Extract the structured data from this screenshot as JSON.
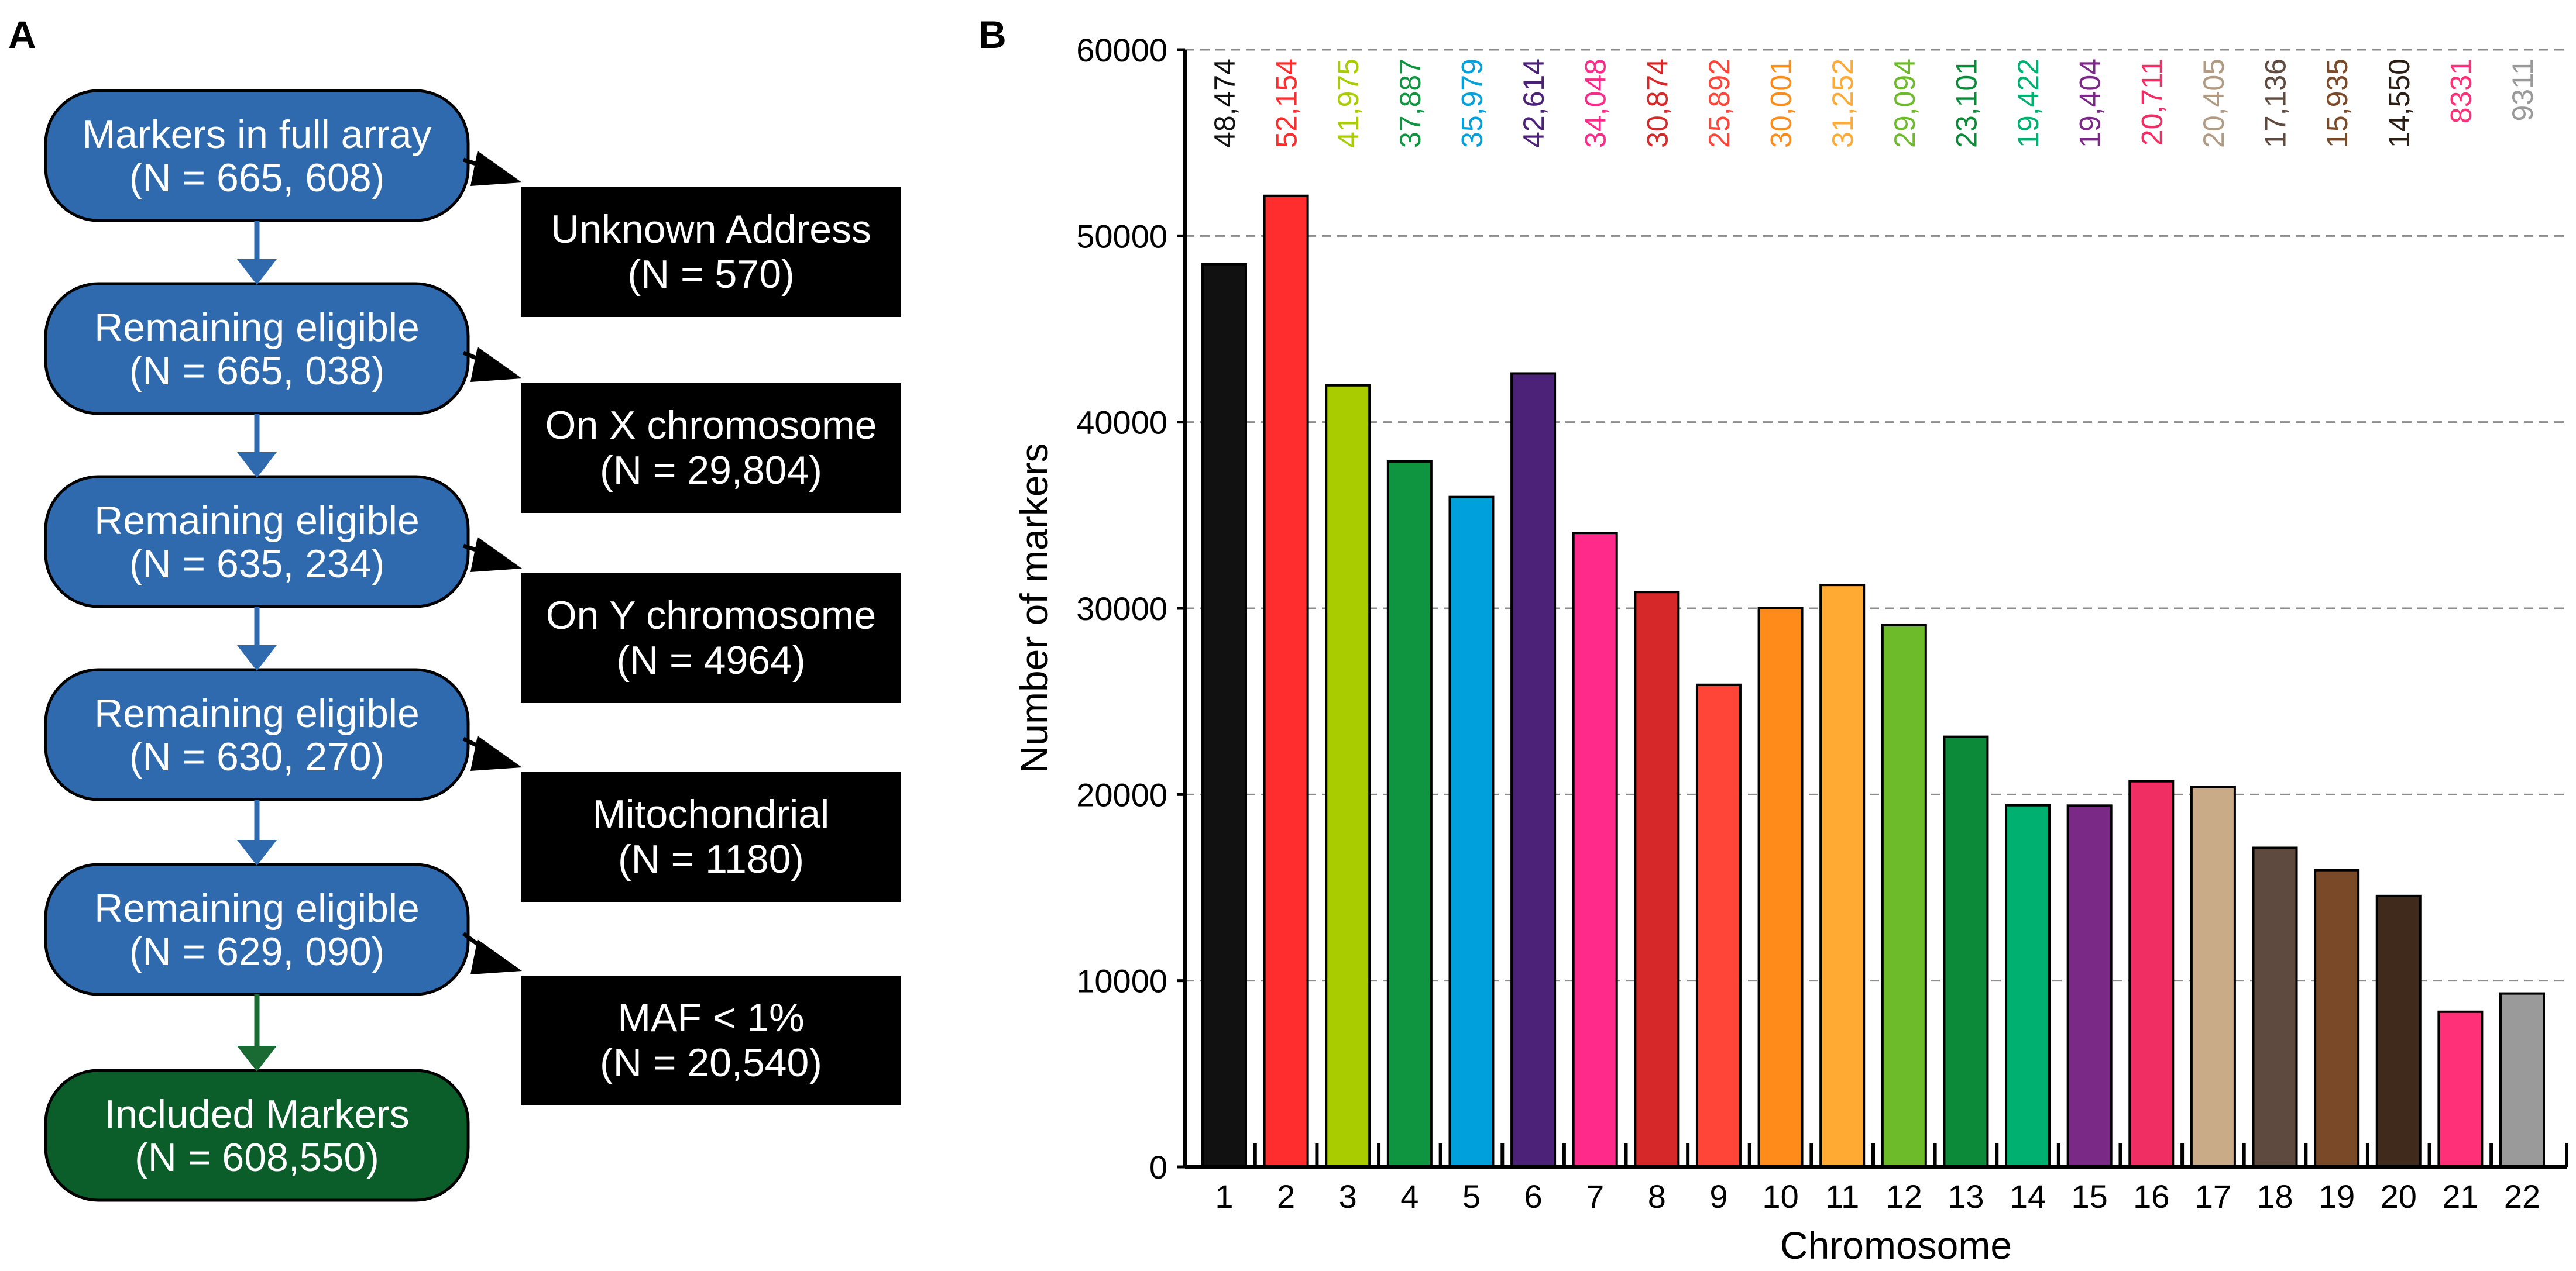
{
  "panels": {
    "a": "A",
    "b": "B"
  },
  "flowchart": {
    "steps": [
      {
        "line1": "Markers in full array",
        "line2": "(N = 665, 608)",
        "color": "#2e6aad"
      },
      {
        "line1": "Remaining eligible",
        "line2": "(N = 665, 038)",
        "color": "#2e6aad"
      },
      {
        "line1": "Remaining eligible",
        "line2": "(N = 635, 234)",
        "color": "#2e6aad"
      },
      {
        "line1": "Remaining eligible",
        "line2": "(N = 630, 270)",
        "color": "#2e6aad"
      },
      {
        "line1": "Remaining eligible",
        "line2": "(N = 629, 090)",
        "color": "#2e6aad"
      },
      {
        "line1": "Included Markers",
        "line2": "(N = 608,550)",
        "color": "#0b5e2a"
      }
    ],
    "exclusions": [
      {
        "line1": "Unknown Address",
        "line2": "(N = 570)"
      },
      {
        "line1": "On X chromosome",
        "line2": "(N = 29,804)"
      },
      {
        "line1": "On Y chromosome",
        "line2": "(N = 4964)"
      },
      {
        "line1": "Mitochondrial",
        "line2": "(N = 1180)"
      },
      {
        "line1": "MAF < 1%",
        "line2": "(N = 20,540)"
      }
    ],
    "down_arrow_color": "#2e6aad",
    "final_arrow_color": "#1a6b33",
    "side_arrow_color": "#000000",
    "exclusion_box_color": "#000000"
  },
  "chart_data": {
    "type": "bar",
    "xlabel": "Chromosome",
    "ylabel": "Number of markers",
    "ylim": [
      0,
      60000
    ],
    "yticks": [
      0,
      10000,
      20000,
      30000,
      40000,
      50000,
      60000
    ],
    "ytick_labels": [
      "0",
      "10000",
      "20000",
      "30000",
      "40000",
      "50000",
      "60000"
    ],
    "grid": "horizontal dashed",
    "categories": [
      "1",
      "2",
      "3",
      "4",
      "5",
      "6",
      "7",
      "8",
      "9",
      "10",
      "11",
      "12",
      "13",
      "14",
      "15",
      "16",
      "17",
      "18",
      "19",
      "20",
      "21",
      "22"
    ],
    "values": [
      48474,
      52154,
      41975,
      37887,
      35979,
      42614,
      34048,
      30874,
      25892,
      30001,
      31252,
      29094,
      23101,
      19422,
      19404,
      20711,
      20405,
      17136,
      15935,
      14550,
      8331,
      9311
    ],
    "value_labels": [
      "48,474",
      "52,154",
      "41,975",
      "37,887",
      "35,979",
      "42,614",
      "34,048",
      "30,874",
      "25,892",
      "30,001",
      "31,252",
      "29,094",
      "23,101",
      "19,422",
      "19,404",
      "20,711",
      "20,405",
      "17,136",
      "15,935",
      "14,550",
      "8331",
      "9311"
    ],
    "bar_colors": [
      "#111111",
      "#ff2d2d",
      "#a8cc00",
      "#0f9440",
      "#00a0dc",
      "#4c2278",
      "#ff2a8a",
      "#d62828",
      "#ff4438",
      "#ff8c1a",
      "#ffaa33",
      "#6dbb2a",
      "#0c8a3a",
      "#00b070",
      "#7a2a86",
      "#f02e64",
      "#c9ab88",
      "#5e4a3e",
      "#7a4a28",
      "#3f2a1c",
      "#ff2f78",
      "#9a9a9a"
    ],
    "label_colors": [
      "#111111",
      "#ff2d2d",
      "#a8cc00",
      "#0f9440",
      "#00a0dc",
      "#4c2278",
      "#ff2a8a",
      "#d62828",
      "#ff4438",
      "#ff8c1a",
      "#ffaa33",
      "#6dbb2a",
      "#0c8a3a",
      "#00b070",
      "#7a2a86",
      "#f02e64",
      "#b09a82",
      "#5e4a3e",
      "#7a4a28",
      "#2a1e14",
      "#ff2f78",
      "#9a9a9a"
    ]
  }
}
